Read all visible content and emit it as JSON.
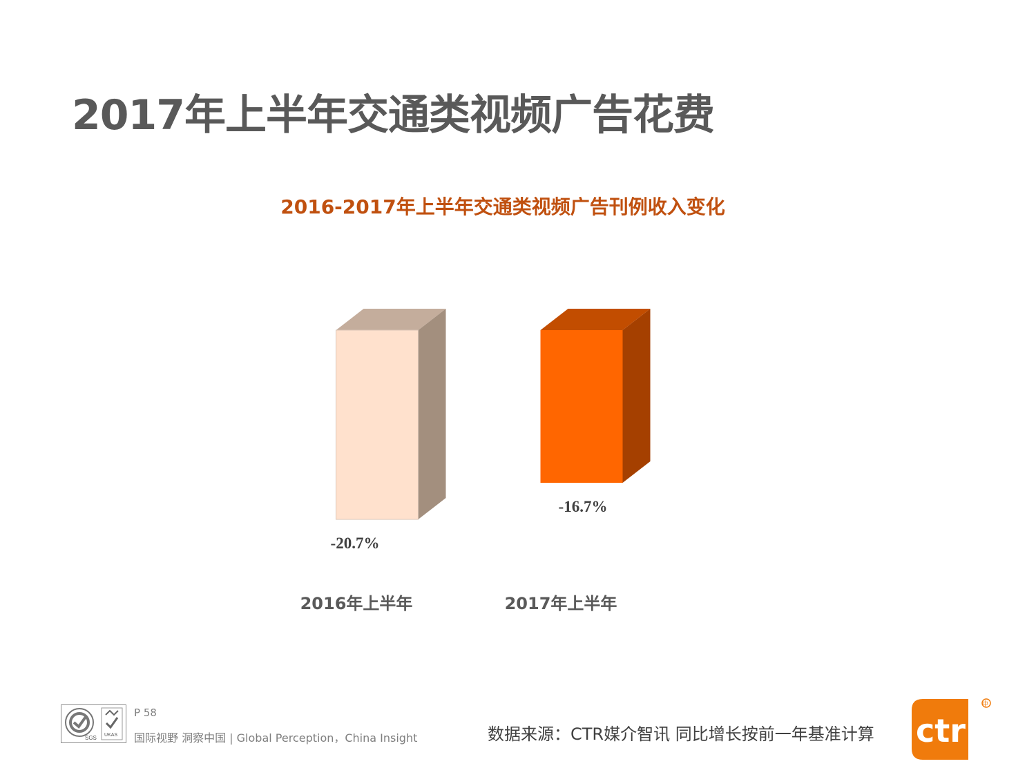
{
  "page": {
    "title": "2017年上半年交通类视频广告花费"
  },
  "chart_data": {
    "type": "bar",
    "title": "2016-2017年上半年交通类视频广告刊例收入变化",
    "categories": [
      "2016年上半年",
      "2017年上半年"
    ],
    "values": [
      -20.7,
      -16.7
    ],
    "value_labels": [
      "-20.7%",
      "-16.7%"
    ],
    "unit": "%",
    "ylim": [
      -22,
      0
    ],
    "xlabel": "",
    "ylabel": "",
    "grid": false,
    "legend": "none",
    "colors": {
      "front": [
        "#FFE1CD",
        "#FF6600"
      ],
      "side": [
        "#A38F7E",
        "#A54000"
      ],
      "top": [
        "#C4AD9C",
        "#C24D00"
      ]
    }
  },
  "footer": {
    "page_number": "P 58",
    "tagline": "国际视野  洞察中国 |  Global Perception，China Insight",
    "source_note": "数据来源：CTR媒介智讯    同比增长按前一年基准计算",
    "logos": [
      "SGS",
      "UKAS"
    ],
    "brand": "ctr",
    "brand_mark": "中"
  },
  "colors": {
    "title": "#595959",
    "chart_title": "#C0500F",
    "brand_orange": "#F07B0C"
  }
}
